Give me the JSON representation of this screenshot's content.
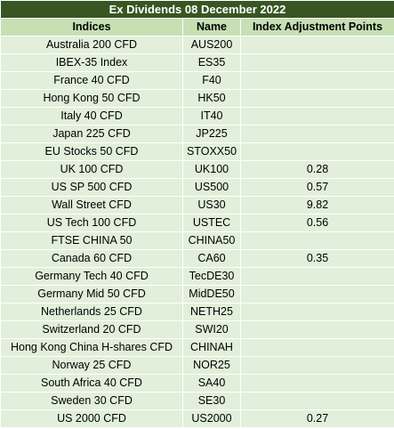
{
  "title": "Ex Dividends 08 December 2022",
  "columns": [
    "Indices",
    "Name",
    "Index Adjustment Points"
  ],
  "rows": [
    {
      "index": "Australia 200 CFD",
      "name": "AUS200",
      "points": ""
    },
    {
      "index": "IBEX-35 Index",
      "name": "ES35",
      "points": ""
    },
    {
      "index": "France 40 CFD",
      "name": "F40",
      "points": ""
    },
    {
      "index": "Hong Kong 50 CFD",
      "name": "HK50",
      "points": ""
    },
    {
      "index": "Italy 40 CFD",
      "name": "IT40",
      "points": ""
    },
    {
      "index": "Japan 225 CFD",
      "name": "JP225",
      "points": ""
    },
    {
      "index": "EU Stocks 50 CFD",
      "name": "STOXX50",
      "points": ""
    },
    {
      "index": "UK 100 CFD",
      "name": "UK100",
      "points": "0.28"
    },
    {
      "index": "US SP 500 CFD",
      "name": "US500",
      "points": "0.57"
    },
    {
      "index": "Wall Street CFD",
      "name": "US30",
      "points": "9.82"
    },
    {
      "index": "US Tech 100 CFD",
      "name": "USTEC",
      "points": "0.56"
    },
    {
      "index": "FTSE CHINA 50",
      "name": "CHINA50",
      "points": ""
    },
    {
      "index": "Canada 60 CFD",
      "name": "CA60",
      "points": "0.35"
    },
    {
      "index": "Germany Tech 40 CFD",
      "name": "TecDE30",
      "points": ""
    },
    {
      "index": "Germany Mid 50 CFD",
      "name": "MidDE50",
      "points": ""
    },
    {
      "index": "Netherlands 25 CFD",
      "name": "NETH25",
      "points": ""
    },
    {
      "index": "Switzerland 20 CFD",
      "name": "SWI20",
      "points": ""
    },
    {
      "index": "Hong Kong China H-shares CFD",
      "name": "CHINAH",
      "points": ""
    },
    {
      "index": "Norway 25 CFD",
      "name": "NOR25",
      "points": ""
    },
    {
      "index": "South Africa 40 CFD",
      "name": "SA40",
      "points": ""
    },
    {
      "index": "Sweden 30 CFD",
      "name": "SE30",
      "points": ""
    },
    {
      "index": "US 2000 CFD",
      "name": "US2000",
      "points": "0.27"
    }
  ],
  "colors": {
    "title_bg": "#375623",
    "title_text": "#ffffff",
    "header_bg": "#c6e0b4",
    "row_bg": "#e2efda"
  }
}
